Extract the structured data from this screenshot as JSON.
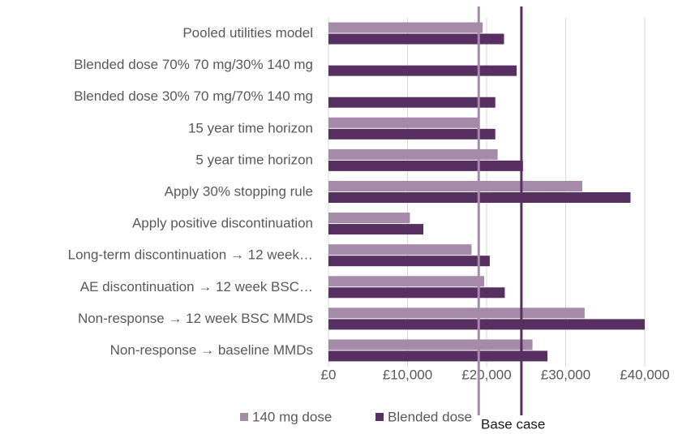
{
  "chart_data": {
    "type": "bar",
    "orientation": "horizontal",
    "categories": [
      "Pooled utilities model",
      "Blended dose 70% 70 mg/30% 140 mg",
      "Blended dose 30% 70 mg/70% 140 mg",
      "15 year time horizon",
      "5 year time horizon",
      "Apply 30% stopping rule",
      "Apply positive discontinuation",
      "Long-term discontinuation → 12 week…",
      "AE discontinuation → 12 week BSC…",
      "Non-response → 12 week BSC MMDs",
      "Non-response → baseline MMDs"
    ],
    "series": [
      {
        "name": "140 mg dose",
        "color": "#a68aa9",
        "values": [
          19500,
          null,
          null,
          19000,
          21400,
          32100,
          10300,
          18100,
          19700,
          32400,
          25800
        ]
      },
      {
        "name": "Blended dose",
        "color": "#582f61",
        "values": [
          22200,
          23800,
          21100,
          21100,
          24600,
          38200,
          12000,
          20400,
          22300,
          40000,
          27700
        ]
      }
    ],
    "xlim": [
      0,
      44000
    ],
    "xticks": [
      {
        "value": 0,
        "label": "£0"
      },
      {
        "value": 10000,
        "label": "£10,000"
      },
      {
        "value": 20000,
        "label": "£20,000"
      },
      {
        "value": 30000,
        "label": "£30,000"
      },
      {
        "value": 40000,
        "label": "£40,000"
      }
    ],
    "grid": true,
    "legend": "bottom",
    "reference_lines": [
      {
        "value": 19000,
        "color": "#a68aa9"
      },
      {
        "value": 24400,
        "color": "#582f61"
      }
    ],
    "reference_label": "Base case"
  }
}
